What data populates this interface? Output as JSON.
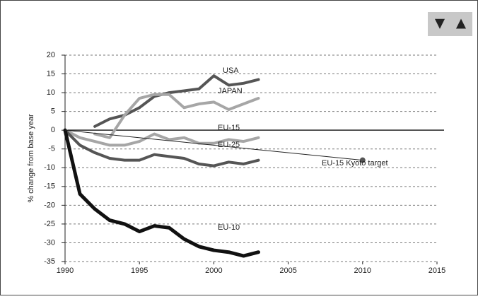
{
  "buttons": [
    "▼",
    "▲"
  ],
  "chart_data": {
    "type": "line",
    "y_label": "% change from base year",
    "x": [
      1990,
      1991,
      1992,
      1993,
      1994,
      1995,
      1996,
      1997,
      1998,
      1999,
      2000,
      2001,
      2002,
      2003
    ],
    "series": [
      {
        "name": "USA",
        "color": "#555555",
        "values": [
          null,
          null,
          1,
          3,
          4,
          6,
          9,
          10,
          10.5,
          11,
          14.5,
          12,
          12.5,
          13.5
        ]
      },
      {
        "name": "JAPAN",
        "color": "#a6a6a6",
        "values": [
          null,
          null,
          -1,
          -2,
          4,
          8.5,
          9.5,
          9.5,
          6,
          7,
          7.5,
          5.5,
          7,
          8.5
        ]
      },
      {
        "name": "EU-15",
        "color": "#a6a6a6",
        "values": [
          0,
          -2,
          -3,
          -4,
          -4,
          -3,
          -1,
          -2.5,
          -2,
          -3.5,
          -3.5,
          -2.5,
          -3,
          -2
        ]
      },
      {
        "name": "EU-25",
        "color": "#555555",
        "values": [
          0,
          -4,
          -6,
          -7.5,
          -8,
          -8,
          -6.5,
          -7,
          -7.5,
          -9,
          -9.5,
          -8.5,
          -9,
          -8
        ]
      },
      {
        "name": "EU-10",
        "color": "#111111",
        "values": [
          0,
          -17,
          -21,
          -24,
          -25,
          -27,
          -25.5,
          -26,
          -29,
          -31,
          -32,
          -32.5,
          -33.5,
          -32.5
        ]
      }
    ],
    "target": {
      "name": "EU-15 Kyoto target",
      "color": "#555555",
      "x": [
        1990,
        2010
      ],
      "values": [
        0,
        -8
      ]
    },
    "xlim": [
      1990,
      2015
    ],
    "xticks": [
      1990,
      1995,
      2000,
      2005,
      2010,
      2015
    ],
    "ylim": [
      -35,
      20
    ],
    "yticks": [
      -35,
      -30,
      -25,
      -20,
      -15,
      -10,
      -5,
      0,
      5,
      10,
      15,
      20
    ],
    "grid": true
  }
}
